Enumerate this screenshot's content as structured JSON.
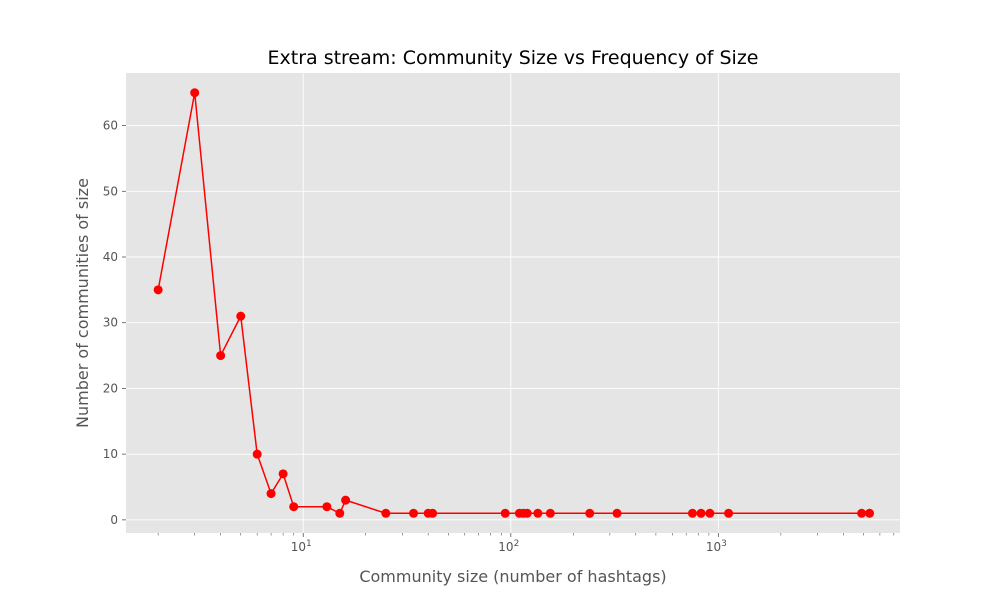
{
  "colors": {
    "plot_background": "#e5e5e5",
    "grid": "#ffffff",
    "series": "#ff0000",
    "tick_text": "#555555"
  },
  "chart_data": {
    "type": "line",
    "title": "Extra stream: Community Size vs Frequency of Size",
    "xlabel": "Community size (number of hashtags)",
    "ylabel": "Number of communities of size",
    "xscale": "log",
    "xlim": [
      1.4,
      7500
    ],
    "ylim": [
      -2,
      68
    ],
    "grid": true,
    "x_ticks": [
      {
        "value": 10,
        "base": "10",
        "exp": "1"
      },
      {
        "value": 100,
        "base": "10",
        "exp": "2"
      },
      {
        "value": 1000,
        "base": "10",
        "exp": "3"
      }
    ],
    "y_ticks": [
      0,
      10,
      20,
      30,
      40,
      50,
      60
    ],
    "series": [
      {
        "marker": "circle",
        "x": [
          2,
          3,
          4,
          5,
          6,
          7,
          8,
          9,
          13,
          15,
          16,
          25,
          34,
          40,
          42,
          94,
          110,
          115,
          120,
          135,
          155,
          240,
          325,
          750,
          825,
          910,
          1120,
          4900,
          5350
        ],
        "values": [
          35,
          65,
          25,
          31,
          10,
          4,
          7,
          2,
          2,
          1,
          3,
          1,
          1,
          1,
          1,
          1,
          1,
          1,
          1,
          1,
          1,
          1,
          1,
          1,
          1,
          1,
          1,
          1,
          1
        ]
      }
    ]
  }
}
